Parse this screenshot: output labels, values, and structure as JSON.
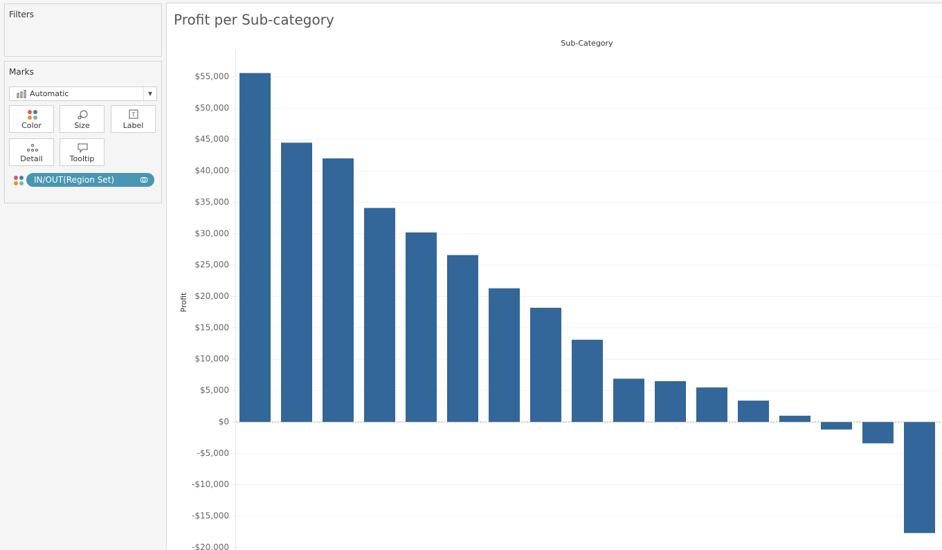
{
  "sidebar": {
    "filters_title": "Filters",
    "marks_title": "Marks",
    "mark_type": "Automatic",
    "buttons": [
      "Color",
      "Size",
      "Label",
      "Detail",
      "Tooltip"
    ],
    "pill": "IN/OUT(Region Set)"
  },
  "chart_data": {
    "type": "bar",
    "title": "Profit per Sub-category",
    "x_label": "Sub-Category",
    "y_label": "Profit",
    "categories": [
      null,
      null,
      null,
      null,
      null,
      null,
      null,
      null,
      null,
      null,
      null,
      null,
      null,
      null,
      null,
      null,
      null
    ],
    "values": [
      55600,
      44500,
      42000,
      34100,
      30200,
      26600,
      21300,
      18200,
      13100,
      6900,
      6500,
      5500,
      3400,
      1000,
      -1200,
      -3400,
      -17700
    ],
    "color": "#336699",
    "ylim": [
      -20400,
      59300
    ],
    "yticks": [
      {
        "value": -20000,
        "label": "-$20,000"
      },
      {
        "value": -15000,
        "label": "-$15,000"
      },
      {
        "value": -10000,
        "label": "-$10,000"
      },
      {
        "value": -5000,
        "label": "-$5,000"
      },
      {
        "value": 0,
        "label": "$0"
      },
      {
        "value": 5000,
        "label": "$5,000"
      },
      {
        "value": 10000,
        "label": "$10,000"
      },
      {
        "value": 15000,
        "label": "$15,000"
      },
      {
        "value": 20000,
        "label": "$20,000"
      },
      {
        "value": 25000,
        "label": "$25,000"
      },
      {
        "value": 30000,
        "label": "$30,000"
      },
      {
        "value": 35000,
        "label": "$35,000"
      },
      {
        "value": 40000,
        "label": "$40,000"
      },
      {
        "value": 45000,
        "label": "$45,000"
      },
      {
        "value": 50000,
        "label": "$50,000"
      },
      {
        "value": 55000,
        "label": "$55,000"
      }
    ],
    "grid": true
  }
}
